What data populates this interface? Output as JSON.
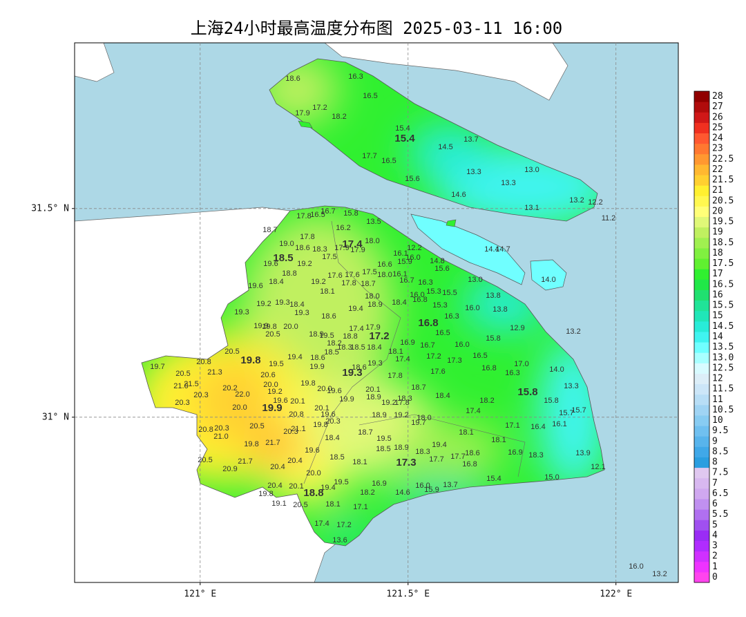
{
  "map": {
    "title": "上海24小时最高温度分布图 2025-03-11 16:00",
    "xlim": [
      120.698,
      122.15
    ],
    "ylim": [
      30.604,
      31.897
    ],
    "xticks": [
      {
        "value": 121,
        "label": "121° E"
      },
      {
        "value": 121.5,
        "label": "121.5° E"
      },
      {
        "value": 122,
        "label": "122° E"
      }
    ],
    "yticks": [
      {
        "value": 31.5,
        "label": "31.5° N"
      },
      {
        "value": 31,
        "label": "31° N"
      }
    ],
    "grid": true,
    "colorbar": {
      "levels": [
        0,
        1,
        2,
        3,
        4,
        5,
        5.5,
        6,
        6.5,
        7,
        7.5,
        8,
        8.5,
        9,
        9.5,
        10,
        10.5,
        11,
        11.5,
        12,
        12.5,
        {
          "value": 13,
          "label": "13.0"
        },
        13.5,
        14,
        14.5,
        15,
        15.5,
        16,
        16.5,
        17,
        17.5,
        18,
        18.5,
        19,
        19.5,
        20,
        20.5,
        21,
        21.5,
        22,
        22.5,
        23,
        24,
        25,
        26,
        27,
        28
      ],
      "colors": [
        "#ff44ee",
        "#ee33ff",
        "#d030ff",
        "#b02cff",
        "#9a2cf5",
        "#a050f0",
        "#b070f0",
        "#c090f0",
        "#d0a8f0",
        "#d8b8f0",
        "#e0c8f0",
        "#2a9ee0",
        "#40a8e8",
        "#58b4ec",
        "#70c0f0",
        "#88ccf2",
        "#a0d4f4",
        "#b8def6",
        "#cce6f8",
        "#dceef8",
        "#d8fbff",
        "#a8ffff",
        "#70ffff",
        "#40f4f0",
        "#28ecd8",
        "#20e6b8",
        "#20e498",
        "#20e070",
        "#20e848",
        "#30f030",
        "#60f030",
        "#80f040",
        "#a0f050",
        "#c0f060",
        "#e0f878",
        "#ffff78",
        "#fff850",
        "#fff030",
        "#ffd030",
        "#ffb830",
        "#ff9830",
        "#ff7830",
        "#ff5830",
        "#f03020",
        "#d01818",
        "#b00c0c",
        "#900000"
      ]
    },
    "district_means": [
      "15.4",
      "17.4",
      "18.5",
      "16.8",
      "17.2",
      "19.8",
      "19.3",
      "19.9",
      "15.8",
      "17.3",
      "18.8"
    ],
    "stations": [
      "18.6",
      "16.3",
      "16.5",
      "17.2",
      "17.9",
      "18.2",
      "15.4",
      "14.5",
      "13.7",
      "17.7",
      "16.5",
      "13.3",
      "13.0",
      "15.6",
      "13.3",
      "14.6",
      "13.2",
      "12.2",
      "13.1",
      "11.2",
      "14.4",
      "14.7",
      "14.0",
      "17.8",
      "16.5",
      "16.7",
      "15.8",
      "13.5",
      "18.7",
      "16.2",
      "17.8",
      "19.0",
      "18.6",
      "18.3",
      "17.9",
      "17.9",
      "18.0",
      "12.2",
      "16.1",
      "16.0",
      "17.5",
      "19.6",
      "19.2",
      "15.9",
      "14.8",
      "16.6",
      "15.6",
      "18.8",
      "17.6",
      "17.6",
      "17.5",
      "18.0",
      "16.1",
      "18.4",
      "19.2",
      "17.8",
      "18.7",
      "16.7",
      "16.3",
      "13.0",
      "19.6",
      "18.1",
      "15.3",
      "15.5",
      "18.0",
      "16.0",
      "13.8",
      "19.2",
      "19.3",
      "18.4",
      "18.9",
      "18.4",
      "16.8",
      "15.3",
      "16.0",
      "13.8",
      "19.3",
      "19.3",
      "19.4",
      "18.6",
      "16.3",
      "19.9",
      "19.8",
      "20.0",
      "17.4",
      "17.9",
      "12.9",
      "13.2",
      "20.5",
      "18.9",
      "19.5",
      "18.8",
      "16.5",
      "15.8",
      "18.2",
      "18.3",
      "18.5",
      "18.4",
      "16.9",
      "16.7",
      "16.0",
      "20.5",
      "19.4",
      "18.6",
      "18.5",
      "18.1",
      "17.2",
      "16.5",
      "17.3",
      "17.0",
      "19.5",
      "17.4",
      "19.9",
      "19.3",
      "18.6",
      "16.8",
      "16.3",
      "14.0",
      "19.7",
      "20.8",
      "21.3",
      "20.5",
      "17.8",
      "17.6",
      "21.5",
      "21.0",
      "20.0",
      "19.8",
      "20.6",
      "18.7",
      "20.1",
      "20.2",
      "22.0",
      "19.2",
      "20.0",
      "19.6",
      "20.3",
      "18.4",
      "18.3",
      "18.9",
      "19.9",
      "19.6",
      "20.1",
      "19.2",
      "17.8",
      "18.2",
      "13.3",
      "15.8",
      "20.3",
      "20.0",
      "20.1",
      "17.4",
      "15.7",
      "15.7",
      "18.9",
      "19.2",
      "19.6",
      "20.8",
      "18.0",
      "19.7",
      "20.3",
      "19.8",
      "20.5",
      "17.1",
      "16.4",
      "16.1",
      "20.8",
      "20.3",
      "20.3",
      "21.1",
      "18.7",
      "18.1",
      "19.5",
      "21.0",
      "21.7",
      "18.4",
      "18.1",
      "19.8",
      "18.9",
      "19.4",
      "18.5",
      "18.3",
      "19.6",
      "17.7",
      "17.7",
      "18.6",
      "16.9",
      "18.3",
      "13.9",
      "20.5",
      "21.7",
      "18.5",
      "18.1",
      "20.4",
      "16.8",
      "20.9",
      "20.4",
      "12.1",
      "20.0",
      "15.4",
      "15.0",
      "19.5",
      "16.9",
      "20.4",
      "20.1",
      "16.0",
      "15.9",
      "13.7",
      "19.4",
      "19.8",
      "18.2",
      "14.6",
      "19.1",
      "20.5",
      "18.1",
      "17.1",
      "17.4",
      "17.2",
      "13.6",
      "16.0",
      "13.2"
    ]
  }
}
